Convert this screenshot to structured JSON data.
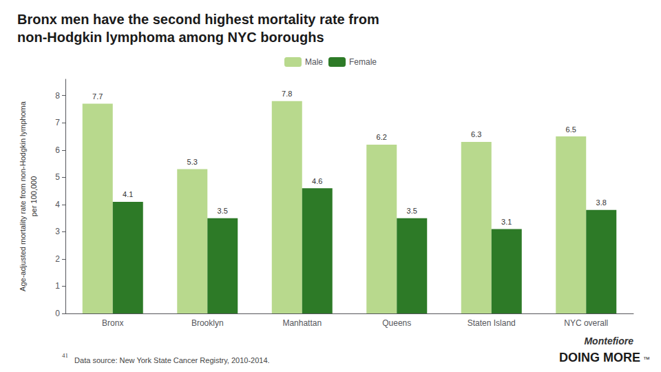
{
  "chart_data": {
    "type": "bar",
    "title": "Bronx men have the second highest mortality rate from\nnon-Hodgkin lymphoma among NYC boroughs",
    "ylabel": "Age-adjusted mortality rate from non-Hodgkin lymphoma\nper 100,000",
    "categories": [
      "Bronx",
      "Brooklyn",
      "Manhattan",
      "Queens",
      "Staten Island",
      "NYC overall"
    ],
    "series": [
      {
        "name": "Male",
        "color": "#b8d98d",
        "values": [
          7.7,
          5.3,
          7.8,
          6.2,
          6.3,
          6.5
        ]
      },
      {
        "name": "Female",
        "color": "#2d7a27",
        "values": [
          4.1,
          3.5,
          4.6,
          3.5,
          3.1,
          3.8
        ]
      }
    ],
    "ylim": [
      0,
      8.6
    ],
    "yticks": [
      0,
      1,
      2,
      3,
      4,
      5,
      6,
      7,
      8
    ],
    "grid": false,
    "legend": "top",
    "data_labels": true,
    "annotations": [
      "41",
      "  Data source: New York State Cancer Registry, 2010-2014.",
      "Montefiore",
      "DOING MORE",
      "™"
    ]
  }
}
